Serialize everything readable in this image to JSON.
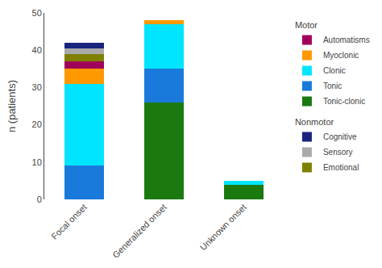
{
  "chart_data": {
    "type": "bar",
    "stacked": true,
    "categories": [
      "Focal onset",
      "Generalized onset",
      "Unknown onset"
    ],
    "series": [
      {
        "name": "Tonic-clonic",
        "color": "#1a7a10",
        "values": [
          0,
          26,
          4
        ]
      },
      {
        "name": "Tonic",
        "color": "#1a7adb",
        "values": [
          9,
          9,
          0
        ]
      },
      {
        "name": "Clonic",
        "color": "#00e5ff",
        "values": [
          22,
          12,
          1
        ]
      },
      {
        "name": "Myoclonic",
        "color": "#ff9900",
        "values": [
          4,
          1,
          0
        ]
      },
      {
        "name": "Automatisms",
        "color": "#a0005a",
        "values": [
          2,
          0,
          0
        ]
      },
      {
        "name": "Emotional",
        "color": "#808000",
        "values": [
          2,
          0,
          0
        ]
      },
      {
        "name": "Sensory",
        "color": "#aaaaaa",
        "values": [
          1.5,
          0,
          0
        ]
      },
      {
        "name": "Cognitive",
        "color": "#1a237e",
        "values": [
          1.5,
          0,
          0
        ]
      }
    ],
    "annotations": [
      {
        "text": "Nonmotor",
        "series": [
          "Cognitive",
          "Sensory",
          "Emotional"
        ]
      },
      {
        "text": "Motor",
        "series": [
          "Automatisms",
          "Myoclonic",
          "Clonic",
          "Tonic",
          "Tonic-clonic"
        ]
      }
    ],
    "ylabel": "n (patients)",
    "ylim": [
      0,
      50
    ],
    "yticks": [
      0,
      10,
      20,
      30,
      40,
      50
    ],
    "grid": false,
    "legend": "right"
  }
}
